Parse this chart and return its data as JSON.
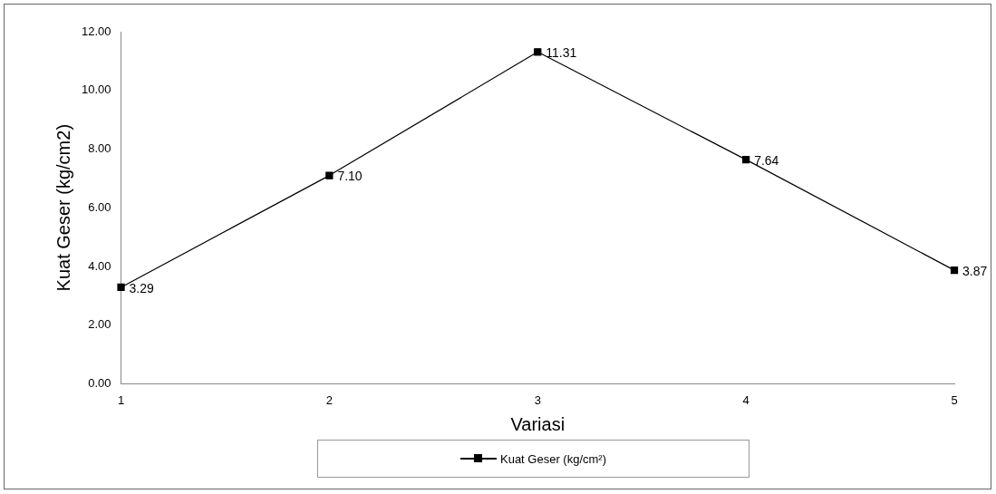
{
  "chart_data": {
    "type": "line",
    "xlabel": "Variasi",
    "ylabel": "Kuat Geser (kg/cm2)",
    "categories": [
      "1",
      "2",
      "3",
      "4",
      "5"
    ],
    "series": [
      {
        "name": "Kuat Geser (kg/cm²)",
        "color": "#000000",
        "values": [
          3.29,
          7.1,
          11.31,
          7.64,
          3.87
        ],
        "value_labels": [
          "3.29",
          "7.10",
          "11.31",
          "7.64",
          "3.87"
        ]
      }
    ],
    "ylim": [
      0,
      12
    ],
    "yticks": [
      {
        "value": 0,
        "label": "0.00"
      },
      {
        "value": 2,
        "label": "2.00"
      },
      {
        "value": 4,
        "label": "4.00"
      },
      {
        "value": 6,
        "label": "6.00"
      },
      {
        "value": 8,
        "label": "8.00"
      },
      {
        "value": 10,
        "label": "10.00"
      },
      {
        "value": 12,
        "label": "12.00"
      }
    ],
    "grid": false,
    "legend": "bottom",
    "marker": "square",
    "line_style": "solid"
  }
}
